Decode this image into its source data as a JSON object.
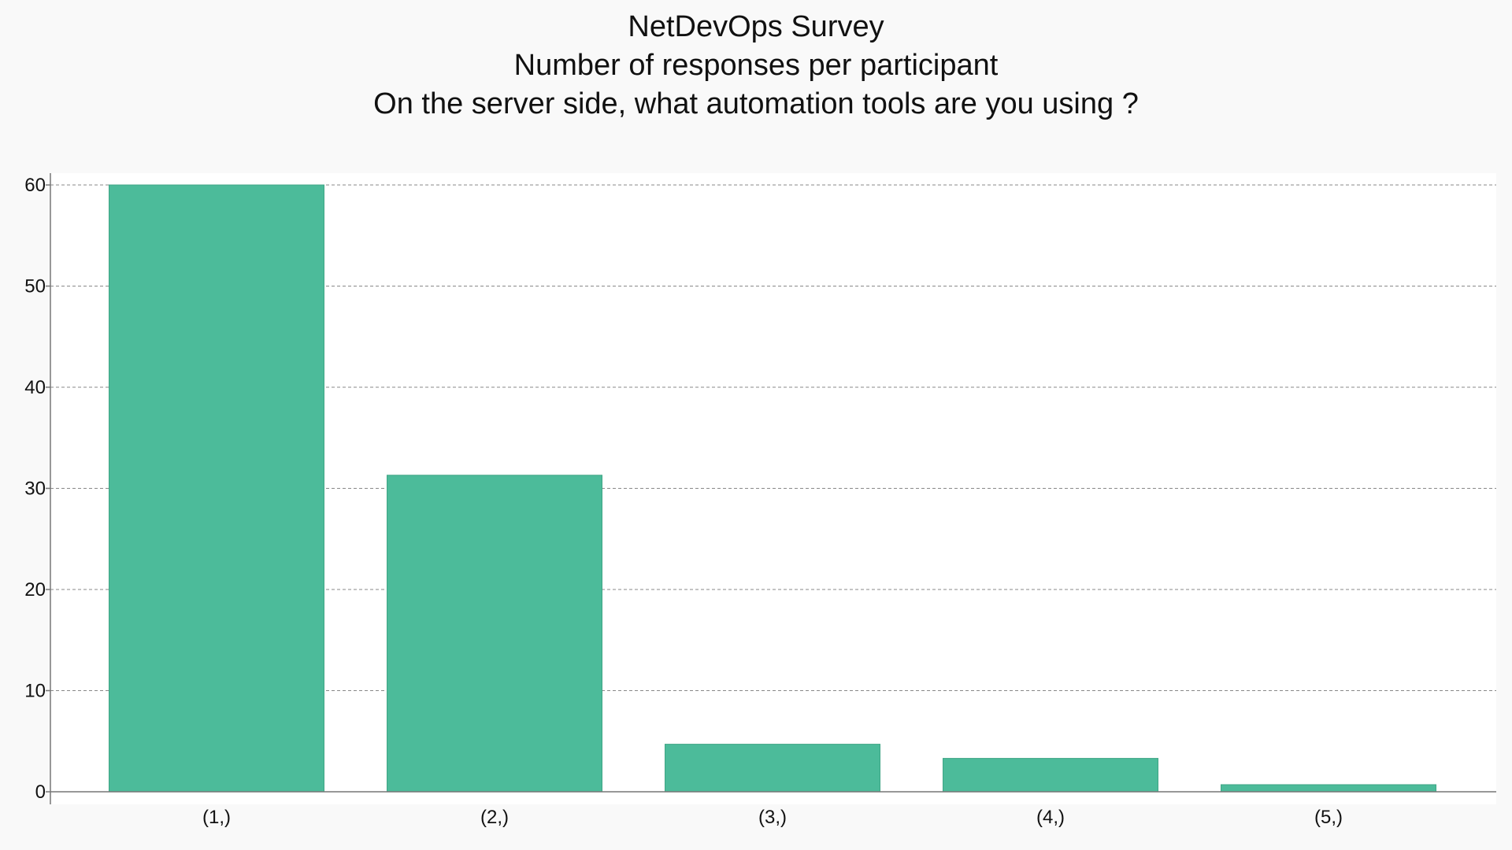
{
  "chart_data": {
    "type": "bar",
    "title": "NetDevOps Survey",
    "subtitle": "Number of responses per participant",
    "question": "On the server side, what automation tools are you using ?",
    "categories": [
      "(1,)",
      "(2,)",
      "(3,)",
      "(4,)",
      "(5,)"
    ],
    "values": [
      60.0,
      31.3,
      4.7,
      3.3,
      0.7
    ],
    "xlabel": "",
    "ylabel": "",
    "ylim": [
      0,
      61
    ],
    "yticks": [
      0,
      10,
      20,
      30,
      40,
      50,
      60
    ],
    "grid": true,
    "legend": "none",
    "colors": {
      "bar": "#4cbb9a",
      "bar_edge": "#3fa585",
      "grid": "#888888",
      "axis": "#777777",
      "plot_background": "#ffffff",
      "page_background": "#f9f9f9"
    }
  }
}
